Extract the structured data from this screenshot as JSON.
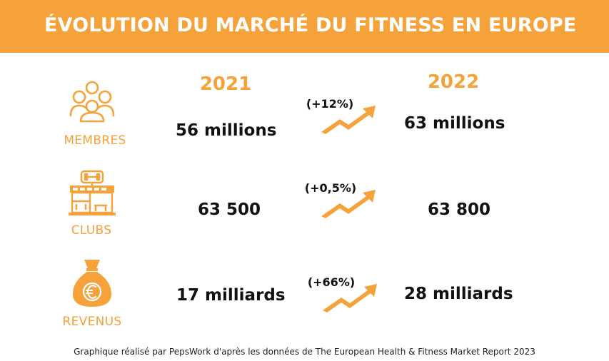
{
  "title": "ÉVOLUTION DU MARCHÉ DU FITNESS EN EUROPE",
  "footer": "Graphique réalisé par PepsWork d'après les données de The European Health & Fitness Market Report 2023",
  "colors": {
    "accent": "#f5a23a",
    "text": "#111111"
  },
  "chart_data": {
    "type": "table",
    "columns": [
      "2021",
      "2022"
    ],
    "rows": [
      {
        "label": "MEMBRES",
        "icon": "people-group-icon",
        "v2021": "56 millions",
        "v2022": "63 millions",
        "change": "(+12%)"
      },
      {
        "label": "CLUBS",
        "icon": "gym-building-icon",
        "v2021": "63 500",
        "v2022": "63 800",
        "change": "(+0,5%)"
      },
      {
        "label": "REVENUS",
        "icon": "euro-money-bag-icon",
        "v2021": "17 milliards",
        "v2022": "28 milliards",
        "change": "(+66%)"
      }
    ]
  }
}
